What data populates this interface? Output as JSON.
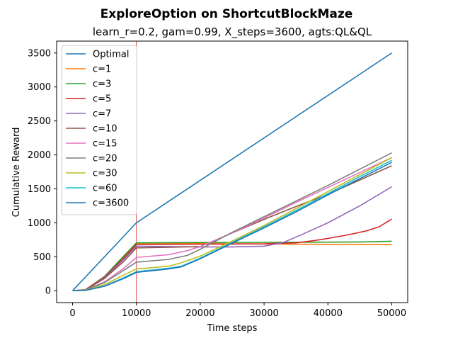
{
  "chart_data": {
    "type": "line",
    "title": "ExploreOption on ShortcutBlockMaze",
    "subtitle": "learn_r=0.2, gam=0.99, X_steps=3600, agts:QL&QL",
    "xlabel": "Time steps",
    "ylabel": "Cumulative Reward",
    "xlim": [
      -2500,
      52500
    ],
    "ylim": [
      -175,
      3675
    ],
    "xticks": [
      0,
      10000,
      20000,
      30000,
      40000,
      50000
    ],
    "xtick_labels": [
      "0",
      "10000",
      "20000",
      "30000",
      "40000",
      "50000"
    ],
    "yticks": [
      0,
      500,
      1000,
      1500,
      2000,
      2500,
      3000,
      3500
    ],
    "ytick_labels": [
      "0",
      "500",
      "1000",
      "1500",
      "2000",
      "2500",
      "3000",
      "3500"
    ],
    "grid": false,
    "legend_position": "top-left",
    "vline": {
      "x": 10000,
      "color": "#d62728"
    },
    "series": [
      {
        "name": "Optimal",
        "color": "#1f77b4",
        "points": [
          [
            0,
            0
          ],
          [
            10000,
            1000
          ],
          [
            50000,
            3500
          ]
        ]
      },
      {
        "name": "c=1",
        "color": "#ff7f0e",
        "points": [
          [
            0,
            0
          ],
          [
            2000,
            15
          ],
          [
            5000,
            200
          ],
          [
            8000,
            500
          ],
          [
            10000,
            700
          ],
          [
            15000,
            700
          ],
          [
            20000,
            695
          ],
          [
            25000,
            690
          ],
          [
            30000,
            688
          ],
          [
            35000,
            685
          ],
          [
            40000,
            683
          ],
          [
            45000,
            681
          ],
          [
            50000,
            680
          ]
        ]
      },
      {
        "name": "c=3",
        "color": "#2ca02c",
        "points": [
          [
            0,
            0
          ],
          [
            2000,
            15
          ],
          [
            5000,
            210
          ],
          [
            8000,
            510
          ],
          [
            10000,
            705
          ],
          [
            20000,
            710
          ],
          [
            30000,
            712
          ],
          [
            40000,
            715
          ],
          [
            45000,
            718
          ],
          [
            50000,
            728
          ]
        ]
      },
      {
        "name": "c=5",
        "color": "#d62728",
        "points": [
          [
            0,
            0
          ],
          [
            2000,
            15
          ],
          [
            5000,
            200
          ],
          [
            8000,
            480
          ],
          [
            10000,
            680
          ],
          [
            20000,
            685
          ],
          [
            30000,
            690
          ],
          [
            35000,
            705
          ],
          [
            38000,
            740
          ],
          [
            40000,
            770
          ],
          [
            43000,
            820
          ],
          [
            46000,
            880
          ],
          [
            48000,
            940
          ],
          [
            50000,
            1055
          ]
        ]
      },
      {
        "name": "c=7",
        "color": "#9467bd",
        "points": [
          [
            0,
            0
          ],
          [
            2000,
            12
          ],
          [
            5000,
            190
          ],
          [
            8000,
            460
          ],
          [
            10000,
            655
          ],
          [
            15000,
            650
          ],
          [
            20000,
            645
          ],
          [
            25000,
            645
          ],
          [
            30000,
            655
          ],
          [
            33000,
            710
          ],
          [
            36000,
            830
          ],
          [
            40000,
            1000
          ],
          [
            45000,
            1250
          ],
          [
            50000,
            1530
          ]
        ]
      },
      {
        "name": "c=10",
        "color": "#8c564b",
        "points": [
          [
            0,
            0
          ],
          [
            2000,
            12
          ],
          [
            5000,
            180
          ],
          [
            8000,
            430
          ],
          [
            10000,
            630
          ],
          [
            15000,
            640
          ],
          [
            20000,
            650
          ],
          [
            25000,
            850
          ],
          [
            30000,
            1050
          ],
          [
            35000,
            1240
          ],
          [
            40000,
            1420
          ],
          [
            45000,
            1630
          ],
          [
            50000,
            1840
          ]
        ]
      },
      {
        "name": "c=15",
        "color": "#e377c2",
        "points": [
          [
            0,
            0
          ],
          [
            2000,
            10
          ],
          [
            5000,
            130
          ],
          [
            8000,
            330
          ],
          [
            10000,
            490
          ],
          [
            15000,
            530
          ],
          [
            18000,
            590
          ],
          [
            20000,
            650
          ],
          [
            25000,
            850
          ],
          [
            30000,
            1070
          ],
          [
            35000,
            1300
          ],
          [
            40000,
            1520
          ],
          [
            45000,
            1740
          ],
          [
            50000,
            1960
          ]
        ]
      },
      {
        "name": "c=20",
        "color": "#7f7f7f",
        "points": [
          [
            0,
            0
          ],
          [
            2000,
            10
          ],
          [
            5000,
            120
          ],
          [
            8000,
            300
          ],
          [
            10000,
            420
          ],
          [
            15000,
            460
          ],
          [
            18000,
            520
          ],
          [
            20000,
            610
          ],
          [
            25000,
            860
          ],
          [
            30000,
            1090
          ],
          [
            35000,
            1320
          ],
          [
            40000,
            1550
          ],
          [
            45000,
            1790
          ],
          [
            50000,
            2030
          ]
        ]
      },
      {
        "name": "c=30",
        "color": "#bcbd22",
        "points": [
          [
            0,
            0
          ],
          [
            2000,
            8
          ],
          [
            5000,
            90
          ],
          [
            8000,
            230
          ],
          [
            10000,
            320
          ],
          [
            15000,
            360
          ],
          [
            17000,
            410
          ],
          [
            20000,
            510
          ],
          [
            25000,
            730
          ],
          [
            30000,
            960
          ],
          [
            35000,
            1210
          ],
          [
            40000,
            1460
          ],
          [
            45000,
            1710
          ],
          [
            50000,
            1960
          ]
        ]
      },
      {
        "name": "c=60",
        "color": "#17becf",
        "points": [
          [
            0,
            0
          ],
          [
            2000,
            6
          ],
          [
            5000,
            70
          ],
          [
            8000,
            190
          ],
          [
            10000,
            280
          ],
          [
            15000,
            330
          ],
          [
            17000,
            360
          ],
          [
            20000,
            480
          ],
          [
            25000,
            710
          ],
          [
            30000,
            940
          ],
          [
            35000,
            1180
          ],
          [
            40000,
            1430
          ],
          [
            45000,
            1680
          ],
          [
            50000,
            1920
          ]
        ]
      },
      {
        "name": "c=3600",
        "color": "#1f77b4",
        "points": [
          [
            0,
            0
          ],
          [
            2000,
            5
          ],
          [
            5000,
            65
          ],
          [
            8000,
            180
          ],
          [
            10000,
            270
          ],
          [
            15000,
            320
          ],
          [
            17000,
            350
          ],
          [
            20000,
            470
          ],
          [
            25000,
            700
          ],
          [
            30000,
            925
          ],
          [
            35000,
            1160
          ],
          [
            40000,
            1410
          ],
          [
            45000,
            1650
          ],
          [
            50000,
            1890
          ]
        ]
      }
    ]
  }
}
